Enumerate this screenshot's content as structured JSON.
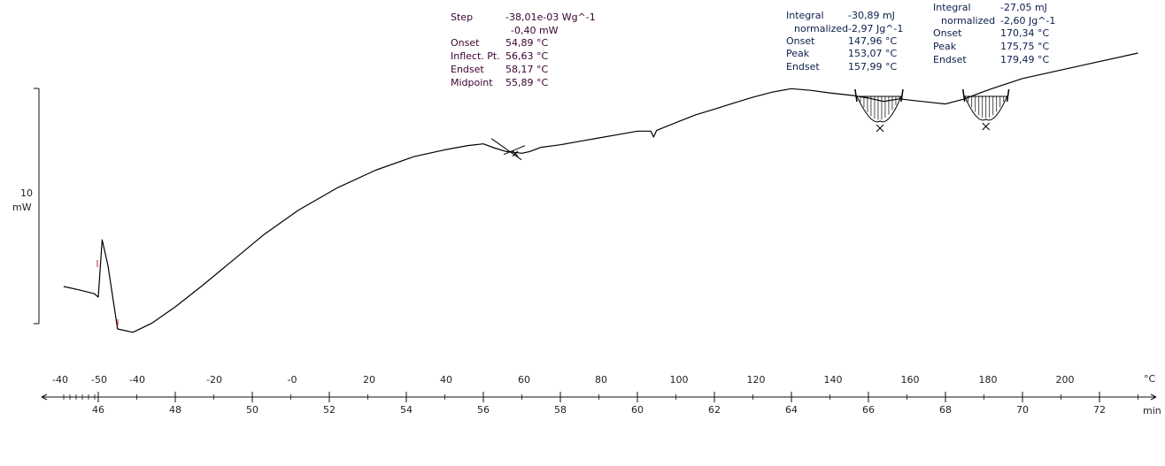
{
  "chart_data": {
    "type": "line",
    "title": "",
    "ylabel_value": "10",
    "ylabel_unit": "mW",
    "x_unit": "min",
    "temp_unit": "°C",
    "x_min_range": [
      45,
      73
    ],
    "time_ticks": [
      "46",
      "48",
      "50",
      "52",
      "54",
      "56",
      "58",
      "60",
      "62",
      "64",
      "66",
      "68",
      "70",
      "72"
    ],
    "temp_ticks": [
      "-40",
      "-50",
      "-40",
      "-20",
      "-0",
      "20",
      "40",
      "60",
      "80",
      "100",
      "120",
      "140",
      "160",
      "180",
      "200"
    ],
    "series": [
      {
        "x": [
          45.1,
          45.5,
          45.9,
          46.0,
          46.1,
          46.25,
          46.5,
          46.9,
          47.4,
          48.0,
          48.7,
          49.5,
          50.3,
          51.2,
          52.2,
          53.2,
          54.2,
          55.0,
          55.6,
          56.0,
          56.3,
          56.6,
          56.8,
          57.0,
          57.2,
          57.5,
          58.0,
          58.5,
          59.0,
          59.5,
          60.0,
          60.35,
          60.42,
          60.5,
          61.0,
          61.5,
          62.0,
          62.5,
          63.0,
          63.5,
          64.0,
          64.5,
          65.0,
          65.6,
          66.0,
          66.4,
          66.8,
          67.2,
          67.6,
          68.0,
          68.5,
          68.9,
          69.2,
          69.6,
          70.0,
          71.0,
          72.0,
          73.0
        ],
        "y": [
          -2.5,
          -2.9,
          -3.35,
          -3.75,
          3.0,
          0.0,
          -7.5,
          -7.9,
          -6.8,
          -4.9,
          -2.4,
          0.6,
          3.6,
          6.5,
          9.1,
          11.2,
          12.8,
          13.6,
          14.1,
          14.3,
          13.8,
          13.4,
          13.3,
          13.2,
          13.4,
          13.9,
          14.2,
          14.6,
          15.0,
          15.4,
          15.8,
          15.8,
          15.1,
          15.9,
          16.8,
          17.7,
          18.4,
          19.1,
          19.8,
          20.4,
          20.8,
          20.6,
          20.3,
          20.0,
          19.7,
          19.3,
          19.6,
          19.4,
          19.2,
          19.0,
          19.6,
          20.3,
          20.8,
          21.4,
          22.0,
          23.0,
          24.0,
          25.0
        ]
      }
    ],
    "annotations": {
      "step": {
        "labels": [
          "Step",
          "",
          "Onset",
          "Inflect. Pt.",
          "Endset",
          "Midpoint"
        ],
        "values": [
          "-38,01e-03 Wg^-1",
          "-0,40 mW",
          "54,89 °C",
          "56,63 °C",
          "58,17 °C",
          "55,89 °C"
        ]
      },
      "peak1": {
        "labels": [
          "Integral",
          "normalized",
          "Onset",
          "Peak",
          "Endset"
        ],
        "values": [
          "-30,89 mJ",
          "-2,97 Jg^-1",
          "147,96 °C",
          "153,07 °C",
          "157,99 °C"
        ]
      },
      "peak2": {
        "labels": [
          "Integral",
          "normalized",
          "Onset",
          "Peak",
          "Endset"
        ],
        "values": [
          "-27,05 mJ",
          "-2,60 Jg^-1",
          "170,34 °C",
          "175,75 °C",
          "179,49 °C"
        ]
      }
    },
    "colors": {
      "curve": "#000000",
      "annotation_text": "#3c0030",
      "marker": "#cc2222"
    }
  }
}
